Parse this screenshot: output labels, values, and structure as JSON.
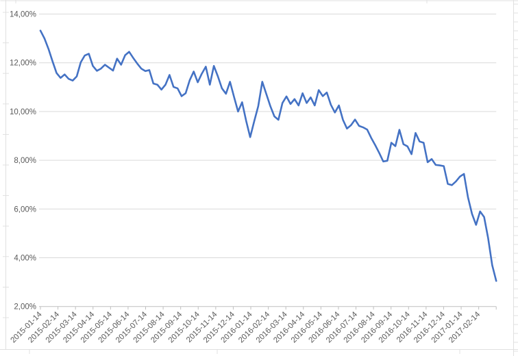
{
  "chart_data": {
    "type": "line",
    "title": "",
    "legend": "none",
    "grid": "horizontal",
    "background": "#FFFFFF",
    "y_axis": {
      "min": 2,
      "max": 14,
      "step": 2,
      "number_format": "0,00%",
      "tick_labels": [
        "14,00%",
        "12,00%",
        "10,00%",
        "8,00%",
        "6,00%",
        "4,00%",
        "2,00%"
      ]
    },
    "x_axis": {
      "tick_labels": [
        "2015-01-14",
        "2015-02-14",
        "2015-03-14",
        "2015-04-14",
        "2015-05-14",
        "2015-06-14",
        "2015-07-14",
        "2015-08-14",
        "2015-09-14",
        "2015-10-14",
        "2015-11-14",
        "2015-12-14",
        "2016-01-14",
        "2016-02-14",
        "2016-03-14",
        "2016-04-14",
        "2016-05-14",
        "2016-06-14",
        "2016-07-14",
        "2016-08-14",
        "2016-09-14",
        "2016-10-14",
        "2016-11-14",
        "2016-12-14",
        "2017-01-14",
        "2017-02-14"
      ],
      "points_span_months": 26,
      "sampling": "weekly"
    },
    "series": [
      {
        "name": "",
        "color": "#4472C4",
        "values": [
          13.32,
          13.0,
          12.57,
          12.06,
          11.58,
          11.38,
          11.52,
          11.34,
          11.27,
          11.44,
          12.02,
          12.3,
          12.37,
          11.87,
          11.67,
          11.76,
          11.92,
          11.8,
          11.68,
          12.17,
          11.92,
          12.31,
          12.45,
          12.2,
          11.97,
          11.76,
          11.66,
          11.7,
          11.15,
          11.1,
          10.9,
          11.1,
          11.5,
          11.01,
          10.95,
          10.63,
          10.75,
          11.28,
          11.64,
          11.2,
          11.55,
          11.84,
          11.1,
          11.87,
          11.44,
          10.95,
          10.73,
          11.22,
          10.6,
          10.0,
          10.38,
          9.62,
          8.95,
          9.6,
          10.22,
          11.22,
          10.72,
          10.22,
          9.8,
          9.66,
          10.35,
          10.62,
          10.31,
          10.51,
          10.25,
          10.75,
          10.35,
          10.58,
          10.25,
          10.88,
          10.63,
          10.78,
          10.28,
          9.96,
          10.25,
          9.66,
          9.3,
          9.44,
          9.67,
          9.41,
          9.35,
          9.26,
          8.92,
          8.62,
          8.3,
          7.95,
          7.98,
          8.72,
          8.58,
          9.25,
          8.66,
          8.57,
          8.25,
          9.12,
          8.77,
          8.72,
          7.92,
          8.05,
          7.81,
          7.79,
          7.76,
          7.03,
          6.98,
          7.13,
          7.33,
          7.44,
          6.48,
          5.8,
          5.35,
          5.9,
          5.67,
          4.8,
          3.7,
          3.05
        ]
      }
    ]
  },
  "style": {
    "gridline_color": "#D9D9D9",
    "axis_line_color": "#BFBFBF",
    "axis_label_color": "#595959",
    "sheet_line_color": "#E0E0E0",
    "series_stroke_width": 2.6,
    "axis_font_size": 11.5
  }
}
